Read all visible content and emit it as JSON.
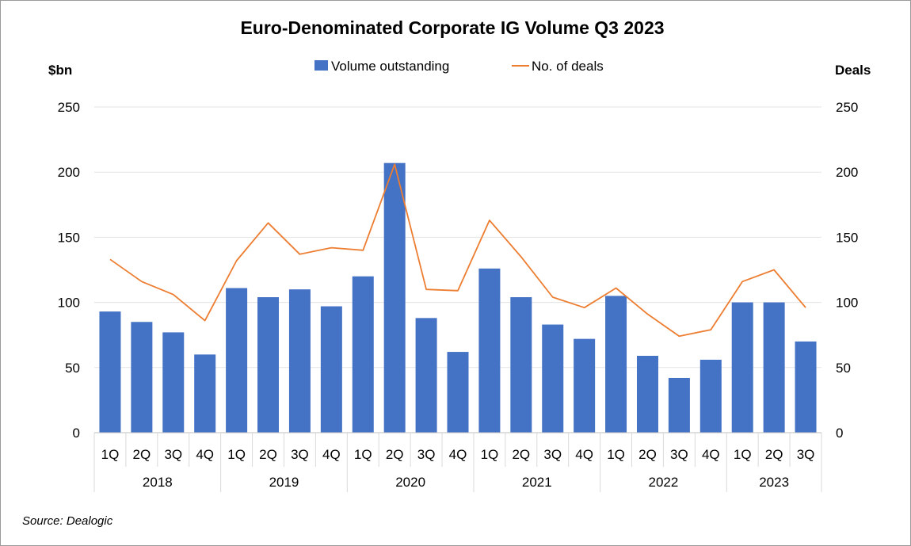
{
  "chart_data": {
    "type": "bar",
    "title": "Euro-Denominated Corporate IG Volume Q3 2023",
    "ylabel_left": "$bn",
    "ylabel_right": "Deals",
    "ylim": [
      0,
      250
    ],
    "yticks": [
      0,
      50,
      100,
      150,
      200,
      250
    ],
    "quarters": [
      "1Q",
      "2Q",
      "3Q",
      "4Q",
      "1Q",
      "2Q",
      "3Q",
      "4Q",
      "1Q",
      "2Q",
      "3Q",
      "4Q",
      "1Q",
      "2Q",
      "3Q",
      "4Q",
      "1Q",
      "2Q",
      "3Q",
      "4Q",
      "1Q",
      "2Q",
      "3Q"
    ],
    "years": [
      {
        "label": "2018",
        "count": 4
      },
      {
        "label": "2019",
        "count": 4
      },
      {
        "label": "2020",
        "count": 4
      },
      {
        "label": "2021",
        "count": 4
      },
      {
        "label": "2022",
        "count": 4
      },
      {
        "label": "2023",
        "count": 3
      }
    ],
    "series": [
      {
        "name": "Volume outstanding",
        "type": "bar",
        "axis": "left",
        "color": "#4472C4",
        "values": [
          93,
          85,
          77,
          60,
          111,
          104,
          110,
          97,
          120,
          207,
          88,
          62,
          126,
          104,
          83,
          72,
          105,
          59,
          42,
          56,
          100,
          100,
          70
        ]
      },
      {
        "name": "No. of deals",
        "type": "line",
        "axis": "right",
        "color": "#ED7D31",
        "values": [
          133,
          116,
          106,
          86,
          132,
          161,
          137,
          142,
          140,
          206,
          110,
          109,
          163,
          135,
          104,
          96,
          111,
          91,
          74,
          79,
          116,
          125,
          96
        ]
      }
    ]
  },
  "source": "Source: Dealogic"
}
